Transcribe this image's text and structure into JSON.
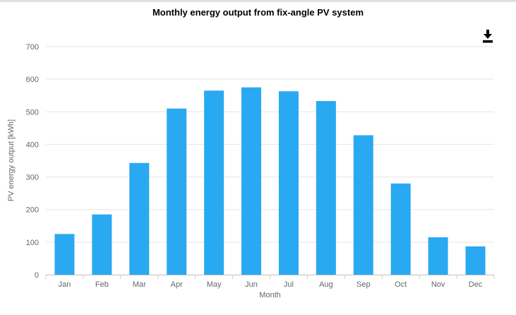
{
  "header": {
    "title": "Monthly energy output from fix-angle PV system"
  },
  "toolbar": {
    "export_icon": "download-icon"
  },
  "chart_data": {
    "type": "bar",
    "title": "Monthly energy output from fix-angle PV system",
    "categories": [
      "Jan",
      "Feb",
      "Mar",
      "Apr",
      "May",
      "Jun",
      "Jul",
      "Aug",
      "Sep",
      "Oct",
      "Nov",
      "Dec"
    ],
    "values": [
      125,
      185,
      343,
      510,
      565,
      575,
      563,
      533,
      428,
      280,
      115,
      87
    ],
    "xlabel": "Month",
    "ylabel": "PV energy output [kWh]",
    "ylim": [
      0,
      700
    ],
    "yticks": [
      0,
      100,
      200,
      300,
      400,
      500,
      600,
      700
    ],
    "grid": true,
    "legend": false,
    "colors": {
      "bar": "#29a9f1",
      "grid_line": "#e6e6e6",
      "axis_line": "#cccccc",
      "tick_label": "#666666",
      "axis_title": "#666666",
      "title": "#000000",
      "export_icon": "#000000"
    }
  }
}
